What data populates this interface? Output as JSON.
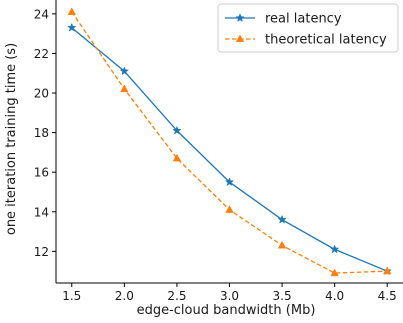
{
  "chart_data": {
    "type": "line",
    "xlabel": "edge-cloud bandwidth (Mb)",
    "ylabel": "one iteration training time (s)",
    "x": [
      1.5,
      2.0,
      2.5,
      3.0,
      3.5,
      4.0,
      4.5
    ],
    "x_ticks": [
      "1.5",
      "2.0",
      "2.5",
      "3.0",
      "3.5",
      "4.0",
      "4.5"
    ],
    "y_ticks": [
      "12",
      "14",
      "16",
      "18",
      "20",
      "22",
      "24"
    ],
    "xlim": [
      1.35,
      4.65
    ],
    "ylim": [
      10.4,
      24.7
    ],
    "grid": false,
    "legend_position": "top-right",
    "series": [
      {
        "name": "real latency",
        "color": "#1f77b4",
        "marker": "star",
        "linestyle": "solid",
        "values": [
          23.3,
          21.1,
          18.1,
          15.5,
          13.6,
          12.1,
          11.0
        ]
      },
      {
        "name": "theoretical latency",
        "color": "#ff7f0e",
        "marker": "triangle",
        "linestyle": "dashed",
        "values": [
          24.1,
          20.2,
          16.7,
          14.1,
          12.3,
          10.9,
          11.0
        ]
      }
    ]
  }
}
